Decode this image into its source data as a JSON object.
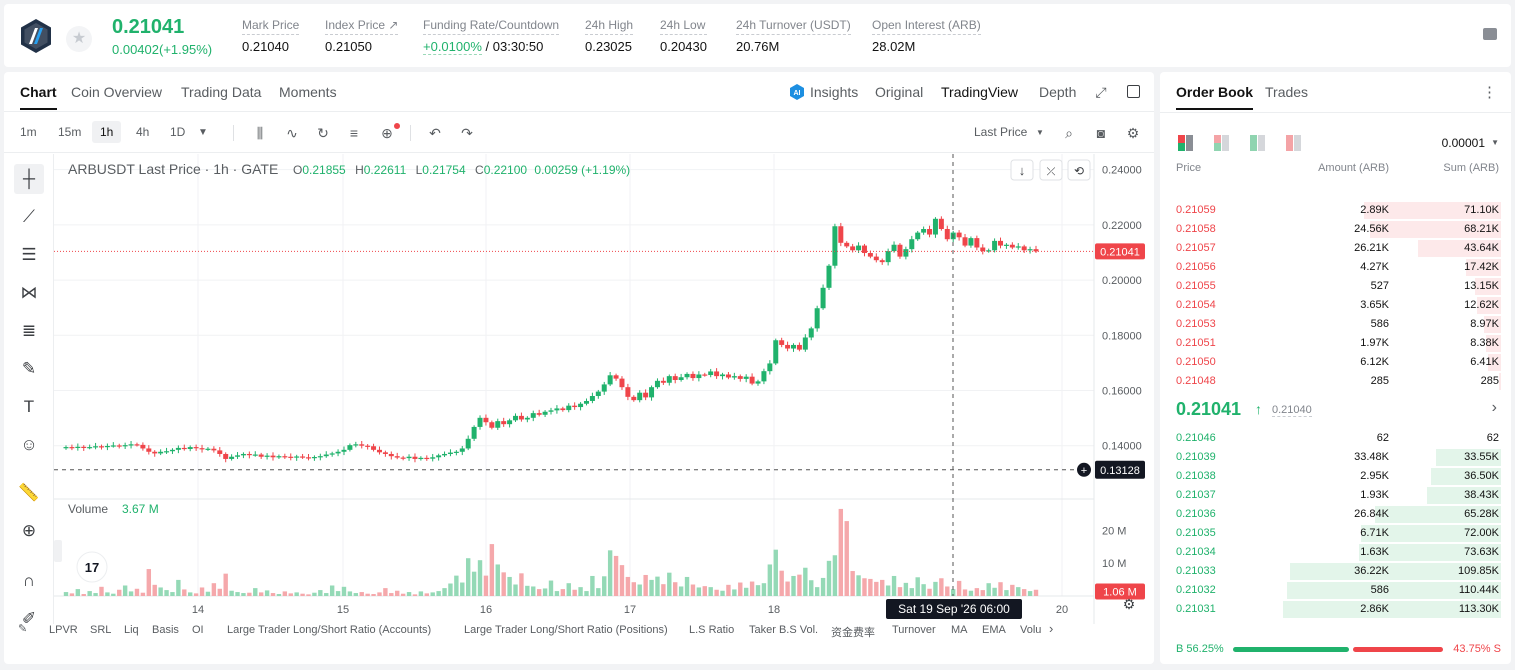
{
  "header": {
    "last_price": "0.21041",
    "change": "0.00402(+1.95%)",
    "stats": [
      {
        "label": "Mark Price",
        "value": "0.21040"
      },
      {
        "label": "Index Price ↗",
        "value": "0.21050"
      },
      {
        "label": "Funding Rate/Countdown",
        "rate": "+0.0100%",
        "countdown": "/ 03:30:50"
      },
      {
        "label": "24h High",
        "value": "0.23025"
      },
      {
        "label": "24h Low",
        "value": "0.20430"
      },
      {
        "label": "24h Turnover (USDT)",
        "value": "20.76M"
      },
      {
        "label": "Open Interest (ARB)",
        "value": "28.02M"
      }
    ]
  },
  "chart_tabs": [
    "Chart",
    "Coin Overview",
    "Trading Data",
    "Moments"
  ],
  "view_tabs": [
    "Insights",
    "Original",
    "TradingView",
    "Depth"
  ],
  "timeframes": [
    "1m",
    "15m",
    "1h",
    "4h",
    "1D"
  ],
  "price_source": "Last Price",
  "legend": {
    "symbol": "ARBUSDT Last Price · 1h · GATE",
    "open_label": "O",
    "open": "0.21855",
    "high_label": "H",
    "high": "0.22611",
    "low_label": "L",
    "low": "0.21754",
    "close_label": "C",
    "close": "0.22100",
    "chg": "0.00259 (+1.19%)"
  },
  "volume_legend": {
    "label": "Volume",
    "value": "3.67 M"
  },
  "indicators": [
    "LPVR",
    "SRL",
    "Liq",
    "Basis",
    "OI",
    "Large Trader Long/Short Ratio (Accounts)",
    "Large Trader Long/Short Ratio (Positions)",
    "L.S Ratio",
    "Taker B.S Vol.",
    "资金费率",
    "Turnover",
    "MA",
    "EMA",
    "Volu"
  ],
  "chart_data": {
    "type": "candlestick",
    "symbol": "ARBUSDT",
    "interval": "1h",
    "y_ticks": [
      "0.24000",
      "0.22000",
      "0.20000",
      "0.18000",
      "0.16000",
      "0.14000"
    ],
    "ylim": [
      0.1225,
      0.2435
    ],
    "x_ticks": [
      "14",
      "15",
      "16",
      "17",
      "18",
      "20"
    ],
    "last_price_tag": "0.21041",
    "cursor_price_tag": "0.13128",
    "cursor_time_tag": "Sat 19 Sep '26   06:00",
    "volume_ticks": [
      "20 M",
      "10 M"
    ],
    "volume_tag": "1.06 M",
    "close_series": [
      0.1395,
      0.1392,
      0.1396,
      0.1393,
      0.1395,
      0.1398,
      0.1396,
      0.1399,
      0.1401,
      0.1398,
      0.1402,
      0.1405,
      0.1403,
      0.139,
      0.1378,
      0.1372,
      0.1378,
      0.138,
      0.1385,
      0.1392,
      0.1388,
      0.1395,
      0.1391,
      0.1387,
      0.1389,
      0.1383,
      0.137,
      0.1352,
      0.136,
      0.1365,
      0.137,
      0.1366,
      0.1368,
      0.136,
      0.1364,
      0.1358,
      0.1362,
      0.136,
      0.1357,
      0.1361,
      0.1358,
      0.1355,
      0.1359,
      0.1362,
      0.1368,
      0.1372,
      0.1378,
      0.1385,
      0.1402,
      0.1405,
      0.14,
      0.1398,
      0.1385,
      0.1376,
      0.137,
      0.1362,
      0.1357,
      0.1355,
      0.136,
      0.1352,
      0.1356,
      0.1353,
      0.1358,
      0.1365,
      0.137,
      0.1375,
      0.1378,
      0.139,
      0.1425,
      0.1468,
      0.1501,
      0.1485,
      0.1465,
      0.1489,
      0.1478,
      0.1492,
      0.1508,
      0.1495,
      0.1501,
      0.1518,
      0.1512,
      0.1523,
      0.1528,
      0.1535,
      0.1529,
      0.1545,
      0.154,
      0.1552,
      0.1562,
      0.158,
      0.1596,
      0.1622,
      0.1655,
      0.1643,
      0.1612,
      0.1577,
      0.1565,
      0.1592,
      0.1575,
      0.1612,
      0.1635,
      0.1628,
      0.1652,
      0.1638,
      0.1648,
      0.166,
      0.1645,
      0.1658,
      0.1656,
      0.1669,
      0.1652,
      0.1658,
      0.1647,
      0.1652,
      0.1642,
      0.165,
      0.1625,
      0.1633,
      0.167,
      0.1698,
      0.1782,
      0.1765,
      0.1752,
      0.1765,
      0.1748,
      0.1792,
      0.1825,
      0.1898,
      0.1972,
      0.2052,
      0.2195,
      0.2135,
      0.2122,
      0.2108,
      0.2125,
      0.2098,
      0.2085,
      0.2072,
      0.2065,
      0.2105,
      0.2128,
      0.2085,
      0.2112,
      0.2148,
      0.2172,
      0.2185,
      0.2165,
      0.2222,
      0.2185,
      0.2148,
      0.2172,
      0.2155,
      0.2125,
      0.2152,
      0.2118,
      0.2105,
      0.2108,
      0.2142,
      0.2125,
      0.2128,
      0.2118,
      0.2122,
      0.2108,
      0.2112,
      0.2104
    ],
    "volume_series": [
      1.2,
      0.8,
      2.1,
      0.6,
      1.5,
      0.9,
      2.8,
      1.1,
      0.7,
      1.9,
      3.2,
      1.4,
      2.2,
      1.0,
      8.2,
      3.4,
      2.6,
      1.8,
      1.2,
      4.9,
      2.0,
      1.1,
      0.8,
      2.6,
      1.3,
      3.9,
      2.2,
      6.8,
      1.6,
      1.2,
      0.9,
      1.0,
      2.4,
      1.1,
      1.7,
      0.9,
      0.6,
      1.4,
      0.8,
      1.1,
      0.7,
      0.5,
      1.0,
      1.8,
      0.9,
      3.2,
      1.5,
      2.8,
      1.4,
      0.9,
      1.2,
      0.7,
      0.6,
      1.1,
      2.4,
      0.9,
      1.6,
      0.7,
      1.2,
      0.5,
      1.4,
      0.8,
      1.1,
      1.5,
      2.4,
      3.8,
      6.2,
      4.1,
      11.5,
      7.4,
      10.9,
      6.2,
      15.8,
      9.6,
      7.2,
      5.8,
      3.5,
      6.9,
      3.1,
      2.9,
      2.1,
      2.3,
      4.7,
      1.5,
      2.1,
      3.9,
      1.9,
      2.7,
      1.5,
      6.1,
      2.4,
      6.0,
      13.9,
      12.2,
      9.4,
      5.8,
      4.2,
      3.5,
      6.4,
      4.9,
      5.9,
      3.6,
      7.1,
      4.2,
      2.9,
      5.8,
      3.5,
      2.6,
      3.0,
      2.7,
      1.9,
      1.6,
      3.4,
      2.0,
      4.1,
      2.5,
      4.4,
      3.3,
      3.9,
      9.6,
      14.1,
      7.7,
      4.4,
      6.1,
      6.5,
      8.6,
      4.8,
      2.7,
      5.5,
      10.7,
      12.4,
      26.5,
      22.8,
      7.6,
      6.3,
      5.4,
      5.2,
      4.3,
      4.9,
      3.2,
      6.1,
      2.7,
      4.0,
      2.4,
      5.7,
      3.6,
      2.2,
      4.3,
      5.4,
      2.9,
      2.1,
      4.6,
      2.0,
      1.6,
      2.4,
      1.8,
      3.9,
      2.5,
      4.2,
      1.8,
      3.4,
      2.7,
      2.1,
      1.5,
      1.9,
      1.2,
      1.6,
      1.06
    ]
  },
  "orderbook": {
    "tabs": [
      "Order Book",
      "Trades"
    ],
    "precision": "0.00001",
    "headers": [
      "Price",
      "Amount (ARB)",
      "Sum (ARB)"
    ],
    "asks": [
      {
        "price": "0.21059",
        "amount": "2.89K",
        "sum": "71.10K",
        "depth": 0.63
      },
      {
        "price": "0.21058",
        "amount": "24.56K",
        "sum": "68.21K",
        "depth": 0.6
      },
      {
        "price": "0.21057",
        "amount": "26.21K",
        "sum": "43.64K",
        "depth": 0.38
      },
      {
        "price": "0.21056",
        "amount": "4.27K",
        "sum": "17.42K",
        "depth": 0.16
      },
      {
        "price": "0.21055",
        "amount": "527",
        "sum": "13.15K",
        "depth": 0.12
      },
      {
        "price": "0.21054",
        "amount": "3.65K",
        "sum": "12.62K",
        "depth": 0.11
      },
      {
        "price": "0.21053",
        "amount": "586",
        "sum": "8.97K",
        "depth": 0.08
      },
      {
        "price": "0.21051",
        "amount": "1.97K",
        "sum": "8.38K",
        "depth": 0.07
      },
      {
        "price": "0.21050",
        "amount": "6.12K",
        "sum": "6.41K",
        "depth": 0.06
      },
      {
        "price": "0.21048",
        "amount": "285",
        "sum": "285",
        "depth": 0.01
      }
    ],
    "mid_price": "0.21041",
    "mid_mark": "0.21040",
    "bids": [
      {
        "price": "0.21046",
        "amount": "62",
        "sum": "62",
        "depth": 0.0
      },
      {
        "price": "0.21039",
        "amount": "33.48K",
        "sum": "33.55K",
        "depth": 0.3
      },
      {
        "price": "0.21038",
        "amount": "2.95K",
        "sum": "36.50K",
        "depth": 0.32
      },
      {
        "price": "0.21037",
        "amount": "1.93K",
        "sum": "38.43K",
        "depth": 0.34
      },
      {
        "price": "0.21036",
        "amount": "26.84K",
        "sum": "65.28K",
        "depth": 0.58
      },
      {
        "price": "0.21035",
        "amount": "6.71K",
        "sum": "72.00K",
        "depth": 0.64
      },
      {
        "price": "0.21034",
        "amount": "1.63K",
        "sum": "73.63K",
        "depth": 0.65
      },
      {
        "price": "0.21033",
        "amount": "36.22K",
        "sum": "109.85K",
        "depth": 0.97
      },
      {
        "price": "0.21032",
        "amount": "586",
        "sum": "110.44K",
        "depth": 0.98
      },
      {
        "price": "0.21031",
        "amount": "2.86K",
        "sum": "113.30K",
        "depth": 1.0
      }
    ],
    "buy_ratio": "56.25%",
    "sell_ratio": "43.75%",
    "buy_fraction": 0.5625,
    "buy_label": "B",
    "sell_label": "S"
  },
  "colors": {
    "up": "#20b26c",
    "down": "#ef454a",
    "up_light": "#8fd4b0",
    "down_light": "#f4a3a6"
  }
}
